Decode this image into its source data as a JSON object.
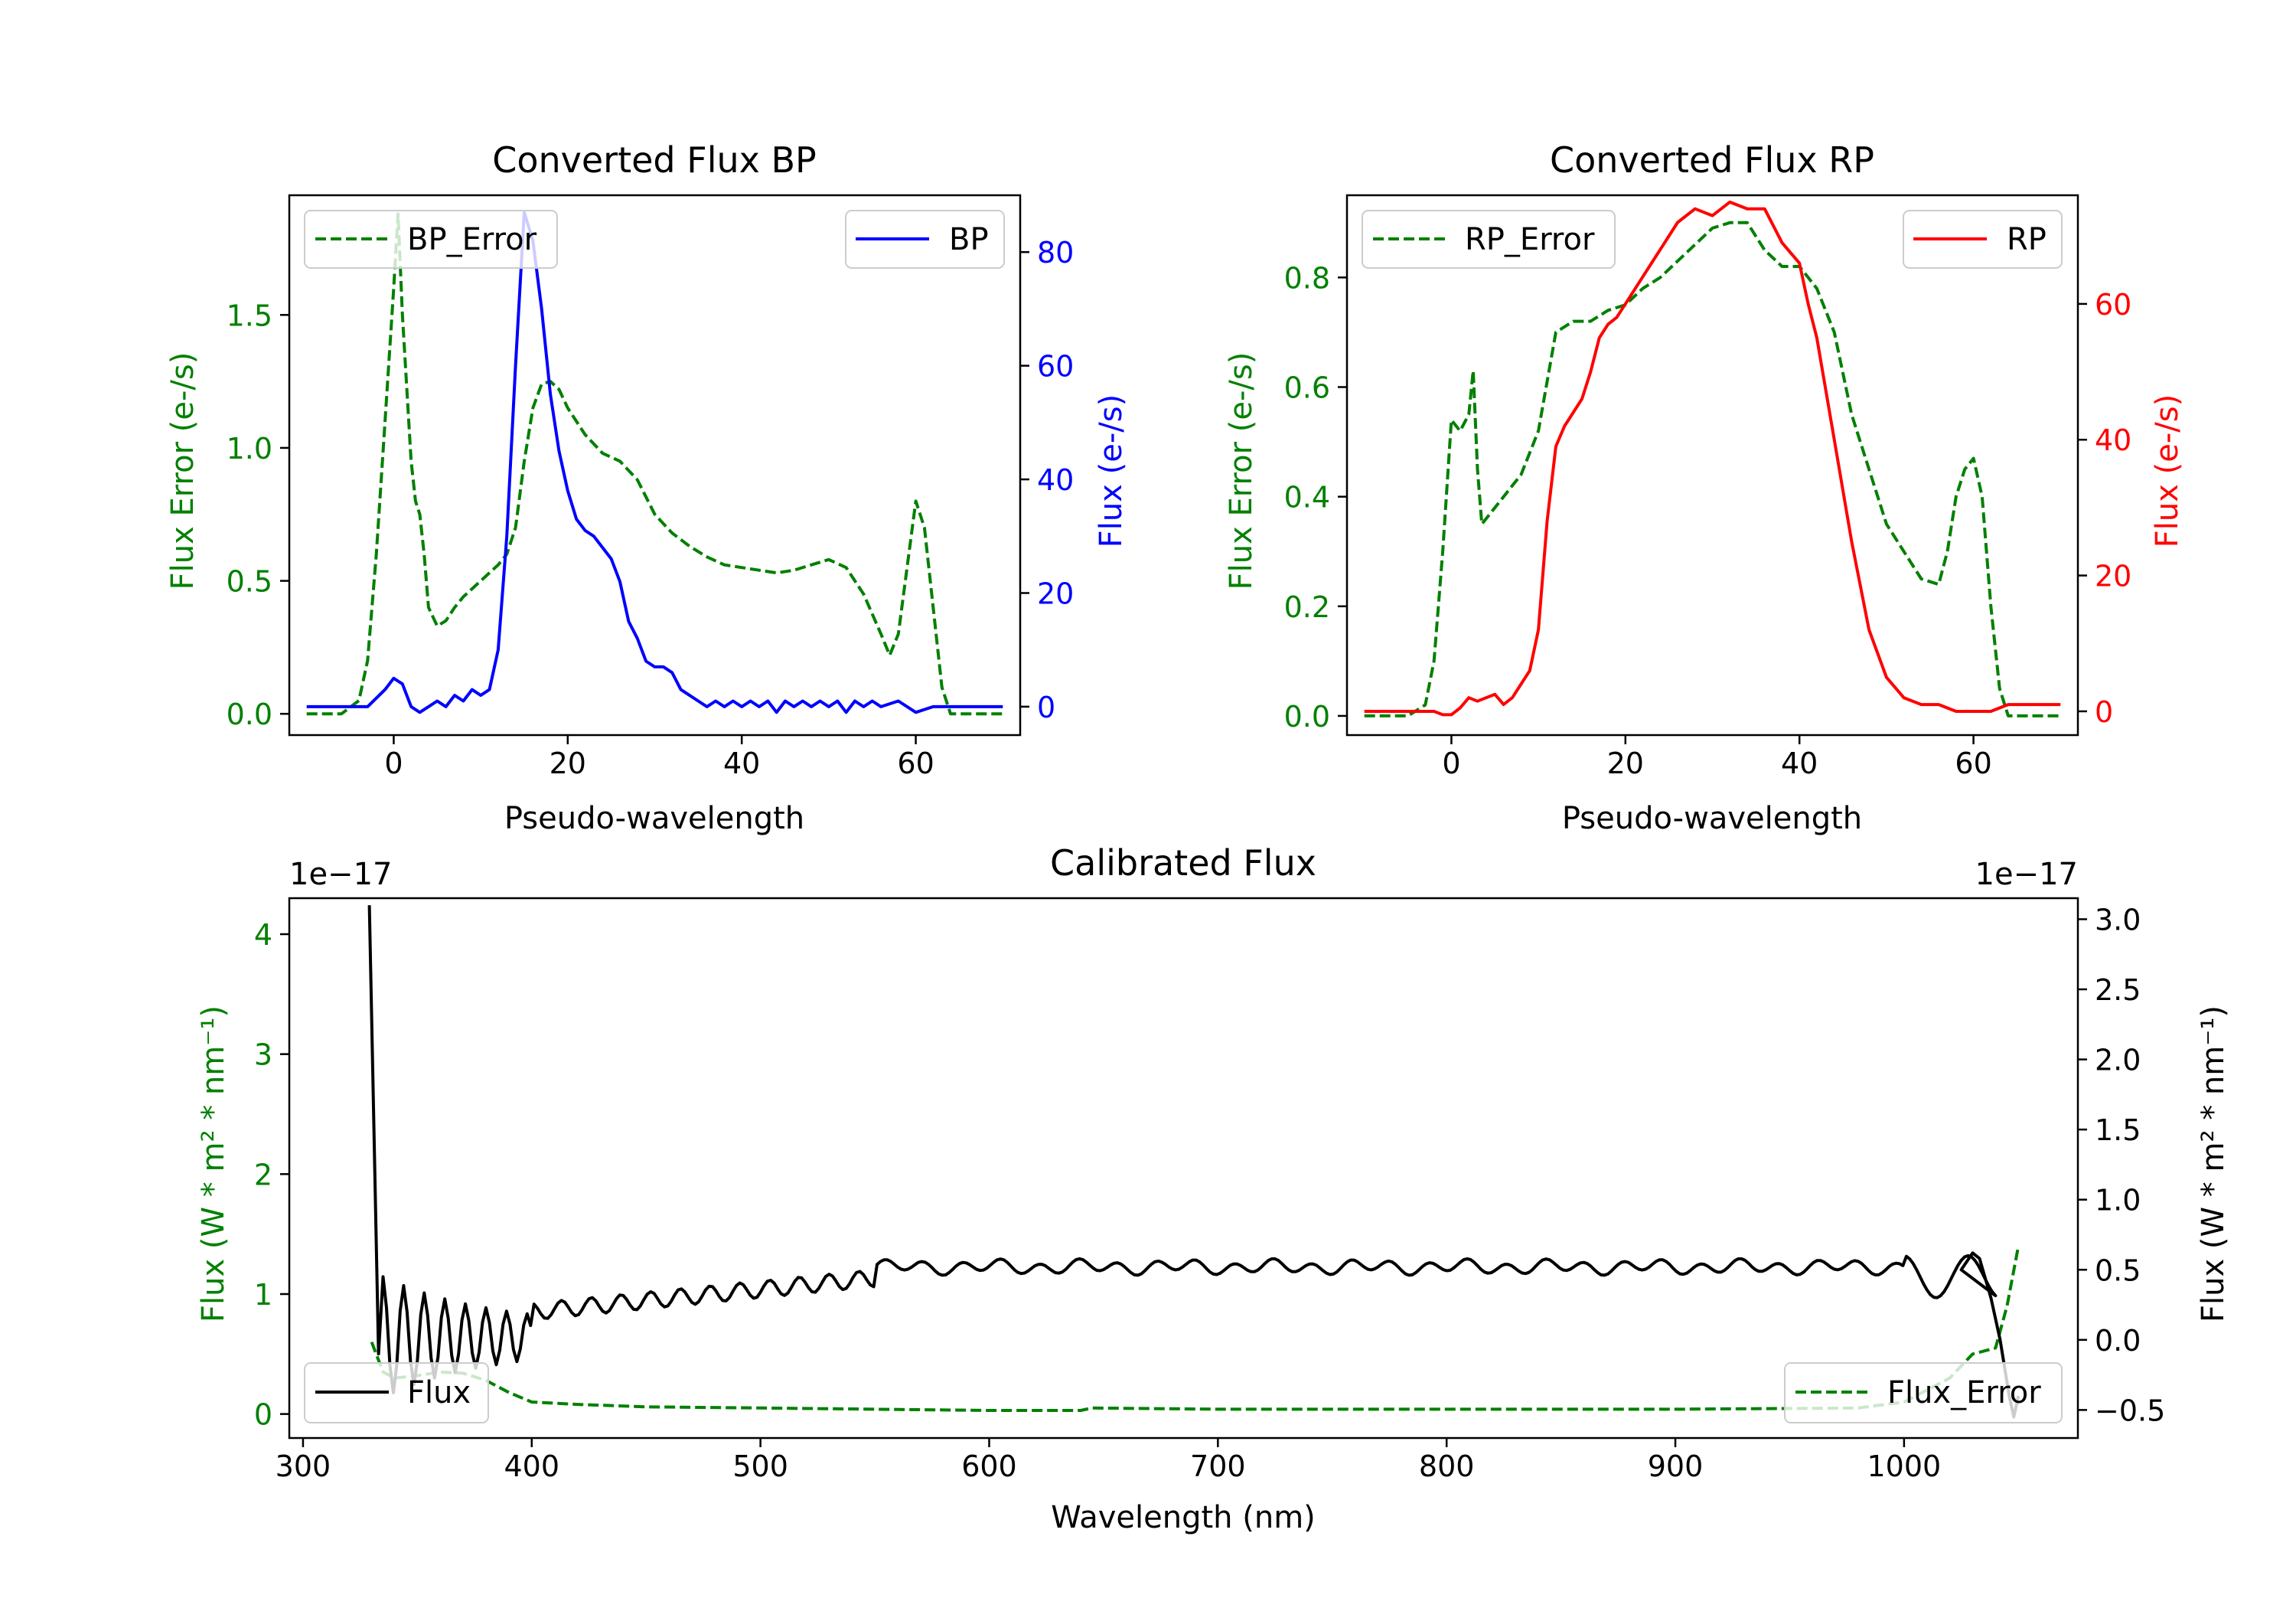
{
  "colors": {
    "error": "#008000",
    "bp": "#0000ff",
    "rp": "#ff0000",
    "flux": "#000000",
    "axis": "#000000"
  },
  "chart_data": [
    {
      "id": "bp",
      "type": "line",
      "title": "Converted Flux BP",
      "xlabel": "Pseudo-wavelength",
      "ylabel_left": "Flux Error (e-/s)",
      "ylabel_right": "Flux (e-/s)",
      "xlim": [
        -12,
        72
      ],
      "ylim_left": [
        -0.08,
        1.95
      ],
      "ylim_right": [
        -5,
        90
      ],
      "xticks": [
        0,
        20,
        40,
        60
      ],
      "yticks_left": [
        0.0,
        0.5,
        1.0,
        1.5
      ],
      "yticks_right": [
        0,
        20,
        40,
        60,
        80
      ],
      "series": [
        {
          "name": "BP_Error",
          "axis": "left",
          "style": "dashed",
          "color": "#008000",
          "x": [
            -10,
            -6,
            -4,
            -3,
            -2,
            -1,
            0,
            0.5,
            1,
            2,
            2.5,
            3,
            3.5,
            4,
            5,
            6,
            7,
            8,
            10,
            12,
            13,
            14,
            15,
            16,
            17,
            18,
            19,
            20,
            22,
            24,
            26,
            28,
            30,
            32,
            34,
            36,
            38,
            40,
            42,
            44,
            46,
            48,
            50,
            52,
            54,
            56,
            57,
            58,
            59,
            60,
            61,
            62,
            63,
            64,
            66,
            68,
            70
          ],
          "y": [
            0,
            0,
            0.05,
            0.2,
            0.6,
            1.1,
            1.6,
            1.88,
            1.5,
            0.95,
            0.8,
            0.75,
            0.6,
            0.4,
            0.33,
            0.35,
            0.4,
            0.44,
            0.5,
            0.56,
            0.6,
            0.7,
            0.95,
            1.15,
            1.24,
            1.25,
            1.22,
            1.15,
            1.05,
            0.98,
            0.95,
            0.88,
            0.75,
            0.68,
            0.63,
            0.59,
            0.56,
            0.55,
            0.54,
            0.53,
            0.54,
            0.56,
            0.58,
            0.55,
            0.45,
            0.3,
            0.22,
            0.3,
            0.55,
            0.8,
            0.7,
            0.4,
            0.1,
            0,
            0,
            0,
            0
          ]
        },
        {
          "name": "BP",
          "axis": "right",
          "style": "solid",
          "color": "#0000ff",
          "x": [
            -10,
            -6,
            -3,
            -1,
            0,
            1,
            2,
            3,
            4,
            5,
            6,
            7,
            8,
            9,
            10,
            11,
            12,
            13,
            14,
            15,
            16,
            17,
            18,
            19,
            20,
            21,
            22,
            23,
            24,
            25,
            26,
            27,
            28,
            29,
            30,
            31,
            32,
            33,
            34,
            35,
            36,
            37,
            38,
            39,
            40,
            41,
            42,
            43,
            44,
            45,
            46,
            47,
            48,
            49,
            50,
            51,
            52,
            53,
            54,
            55,
            56,
            58,
            60,
            62,
            65,
            70
          ],
          "y": [
            0,
            0,
            0,
            3,
            5,
            4,
            0,
            -1,
            0,
            1,
            0,
            2,
            1,
            3,
            2,
            3,
            10,
            30,
            60,
            87,
            82,
            70,
            55,
            45,
            38,
            33,
            31,
            30,
            28,
            26,
            22,
            15,
            12,
            8,
            7,
            7,
            6,
            3,
            2,
            1,
            0,
            1,
            0,
            1,
            0,
            1,
            0,
            1,
            -1,
            1,
            0,
            1,
            0,
            1,
            0,
            1,
            -1,
            1,
            0,
            1,
            0,
            1,
            -1,
            0,
            0,
            0
          ]
        }
      ],
      "legends": [
        {
          "position": "upper-left",
          "label": "BP_Error"
        },
        {
          "position": "upper-right",
          "label": "BP"
        }
      ]
    },
    {
      "id": "rp",
      "type": "line",
      "title": "Converted Flux RP",
      "xlabel": "Pseudo-wavelength",
      "ylabel_left": "Flux Error (e-/s)",
      "ylabel_right": "Flux (e-/s)",
      "xlim": [
        -12,
        72
      ],
      "ylim_left": [
        -0.035,
        0.95
      ],
      "ylim_right": [
        -3.5,
        76
      ],
      "xticks": [
        0,
        20,
        40,
        60
      ],
      "yticks_left": [
        0.0,
        0.2,
        0.4,
        0.6,
        0.8
      ],
      "yticks_right": [
        0,
        20,
        40,
        60
      ],
      "series": [
        {
          "name": "RP_Error",
          "axis": "left",
          "style": "dashed",
          "color": "#008000",
          "x": [
            -10,
            -5,
            -3,
            -2,
            -1,
            0,
            1,
            2,
            2.5,
            3,
            3.5,
            4,
            5,
            6,
            7,
            8,
            10,
            12,
            14,
            16,
            18,
            20,
            22,
            24,
            26,
            28,
            30,
            32,
            34,
            36,
            38,
            40,
            42,
            44,
            46,
            48,
            50,
            52,
            54,
            56,
            57,
            58,
            59,
            60,
            61,
            62,
            63,
            64,
            66,
            68,
            70
          ],
          "y": [
            0,
            0,
            0.02,
            0.1,
            0.3,
            0.54,
            0.52,
            0.55,
            0.63,
            0.45,
            0.35,
            0.36,
            0.38,
            0.4,
            0.42,
            0.44,
            0.52,
            0.7,
            0.72,
            0.72,
            0.74,
            0.75,
            0.78,
            0.8,
            0.83,
            0.86,
            0.89,
            0.9,
            0.9,
            0.85,
            0.82,
            0.82,
            0.78,
            0.7,
            0.55,
            0.45,
            0.35,
            0.3,
            0.25,
            0.24,
            0.3,
            0.4,
            0.45,
            0.47,
            0.4,
            0.2,
            0.05,
            0,
            0,
            0,
            0
          ]
        },
        {
          "name": "RP",
          "axis": "right",
          "style": "solid",
          "color": "#ff0000",
          "x": [
            -10,
            -4,
            -2,
            -1,
            0,
            1,
            2,
            3,
            4,
            5,
            6,
            7,
            8,
            9,
            10,
            11,
            12,
            13,
            14,
            15,
            16,
            17,
            18,
            19,
            20,
            22,
            24,
            26,
            28,
            30,
            32,
            34,
            36,
            38,
            40,
            41,
            42,
            44,
            46,
            48,
            50,
            52,
            54,
            56,
            58,
            60,
            62,
            64,
            66,
            68,
            70
          ],
          "y": [
            0,
            0,
            0,
            -0.5,
            -0.5,
            0.5,
            2,
            1.5,
            2,
            2.5,
            1,
            2,
            4,
            6,
            12,
            28,
            39,
            42,
            44,
            46,
            50,
            55,
            57,
            58,
            60,
            64,
            68,
            72,
            74,
            73,
            75,
            74,
            74,
            69,
            66,
            60,
            55,
            40,
            25,
            12,
            5,
            2,
            1,
            1,
            0,
            0,
            0,
            1,
            1,
            1,
            1
          ]
        }
      ],
      "legends": [
        {
          "position": "upper-left",
          "label": "RP_Error"
        },
        {
          "position": "upper-right",
          "label": "RP"
        }
      ]
    },
    {
      "id": "cal",
      "type": "line",
      "title": "Calibrated Flux",
      "xlabel": "Wavelength (nm)",
      "ylabel_left": "Flux (W * m² * nm⁻¹)",
      "ylabel_right": "Flux (W * m² * nm⁻¹)",
      "offset_left": "1e−17",
      "offset_right": "1e−17",
      "xlim": [
        294,
        1076
      ],
      "ylim_left": [
        -0.2,
        4.3
      ],
      "ylim_right": [
        -0.7,
        3.15
      ],
      "xticks": [
        300,
        400,
        500,
        600,
        700,
        800,
        900,
        1000
      ],
      "yticks_left": [
        0,
        1,
        2,
        3,
        4
      ],
      "yticks_right": [
        -0.5,
        0.0,
        0.5,
        1.0,
        1.5,
        2.0,
        2.5,
        3.0
      ],
      "series": [
        {
          "name": "Flux_Error",
          "axis": "left",
          "style": "dashed",
          "color": "#008000",
          "x": [
            330,
            335,
            340,
            350,
            360,
            370,
            380,
            390,
            400,
            420,
            450,
            500,
            550,
            600,
            640,
            645,
            700,
            800,
            900,
            980,
            1000,
            1020,
            1030,
            1040,
            1045,
            1050
          ],
          "y": [
            0.6,
            0.35,
            0.3,
            0.32,
            0.35,
            0.34,
            0.28,
            0.18,
            0.1,
            0.08,
            0.06,
            0.05,
            0.04,
            0.03,
            0.03,
            0.05,
            0.04,
            0.04,
            0.04,
            0.05,
            0.1,
            0.3,
            0.5,
            0.55,
            0.9,
            1.4
          ]
        },
        {
          "name": "Flux",
          "axis": "right",
          "style": "solid",
          "color": "#000000",
          "x": [],
          "y": [],
          "generated": true
        }
      ],
      "legends": [
        {
          "position": "lower-left",
          "label": "Flux"
        },
        {
          "position": "lower-right",
          "label": "Flux_Error"
        }
      ]
    }
  ]
}
